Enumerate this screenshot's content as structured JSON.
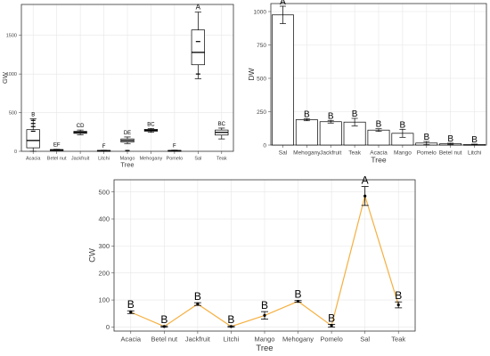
{
  "chart_data": [
    {
      "type": "box",
      "xlabel": "Tree",
      "ylabel": "GW",
      "ylim": [
        0,
        1900
      ],
      "yticks": [
        0,
        500,
        1000,
        1500
      ],
      "grid": true,
      "categories": [
        "Acacia",
        "Betel nut",
        "Jackfruit",
        "Litchi",
        "Mango",
        "Mehogany",
        "Pomelo",
        "Sal",
        "Teak"
      ],
      "boxes": [
        {
          "min": 0,
          "q1": 45,
          "median": 140,
          "q3": 280,
          "max": 420,
          "outliers": [
            260,
            320,
            360,
            400
          ],
          "letter": "B"
        },
        {
          "min": 10,
          "q1": 15,
          "median": 18,
          "q3": 22,
          "max": 26,
          "outliers": [],
          "letter": "EF"
        },
        {
          "min": 215,
          "q1": 232,
          "median": 245,
          "q3": 258,
          "max": 275,
          "outliers": [],
          "letter": "CD"
        },
        {
          "min": 2,
          "q1": 5,
          "median": 8,
          "q3": 11,
          "max": 14,
          "outliers": [],
          "letter": "F"
        },
        {
          "min": 100,
          "q1": 120,
          "median": 140,
          "q3": 160,
          "max": 185,
          "outliers": [
            10
          ],
          "letter": "DE"
        },
        {
          "min": 245,
          "q1": 260,
          "median": 272,
          "q3": 284,
          "max": 295,
          "outliers": [],
          "letter": "BC"
        },
        {
          "min": 2,
          "q1": 5,
          "median": 8,
          "q3": 11,
          "max": 15,
          "outliers": [],
          "letter": "F"
        },
        {
          "min": 940,
          "q1": 1120,
          "median": 1280,
          "q3": 1570,
          "max": 1800,
          "outliers": [
            1000,
            1420
          ],
          "letter": "A"
        },
        {
          "min": 160,
          "q1": 210,
          "median": 245,
          "q3": 275,
          "max": 300,
          "outliers": [],
          "letter": "BC"
        }
      ]
    },
    {
      "type": "bar",
      "xlabel": "Tree",
      "ylabel": "DW",
      "ylim": [
        0,
        1060
      ],
      "yticks": [
        0,
        250,
        500,
        750,
        1000
      ],
      "grid": true,
      "categories": [
        "Sal",
        "Mehogany",
        "Jackfruit",
        "Teak",
        "Acacia",
        "Mango",
        "Pomelo",
        "Betel nut",
        "Litchi"
      ],
      "values": [
        975,
        190,
        175,
        172,
        112,
        88,
        15,
        10,
        4
      ],
      "errors": [
        65,
        8,
        10,
        28,
        10,
        30,
        12,
        4,
        3
      ],
      "letters": [
        "A",
        "B",
        "B",
        "B",
        "B",
        "B",
        "B",
        "B",
        "B"
      ]
    },
    {
      "type": "line",
      "xlabel": "Tree",
      "ylabel": "CW",
      "ylim": [
        -15,
        545
      ],
      "yticks": [
        0,
        100,
        200,
        300,
        400,
        500
      ],
      "grid": true,
      "color": "#F5B041",
      "categories": [
        "Acacia",
        "Betel nut",
        "Jackfruit",
        "Litchi",
        "Mango",
        "Mehogany",
        "Pomelo",
        "Sal",
        "Teak"
      ],
      "values": [
        55,
        2,
        85,
        2,
        43,
        95,
        5,
        485,
        82
      ],
      "errors": [
        5,
        2,
        5,
        2,
        14,
        3,
        5,
        35,
        11
      ],
      "letters": [
        "B",
        "B",
        "B",
        "B",
        "B",
        "B",
        "B",
        "A",
        "B"
      ]
    }
  ]
}
